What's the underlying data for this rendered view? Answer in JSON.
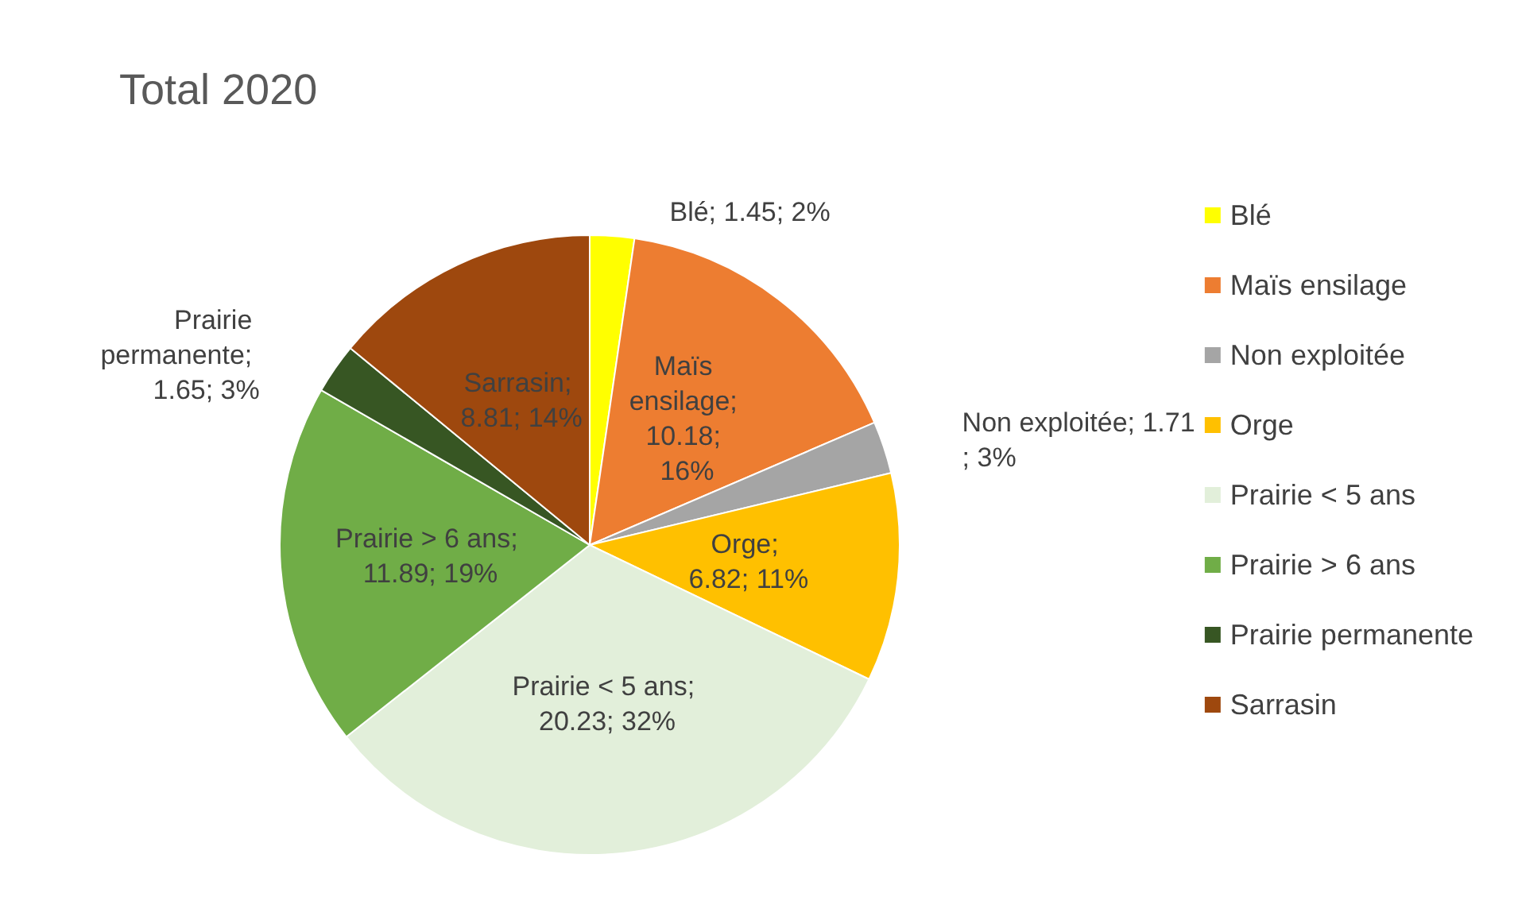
{
  "chart_data": {
    "type": "pie",
    "title": "Total 2020",
    "categories": [
      "Blé",
      "Maïs ensilage",
      "Non exploitée",
      "Orge",
      "Prairie < 5 ans",
      "Prairie > 6 ans",
      "Prairie permanente",
      "Sarrasin"
    ],
    "values": [
      1.45,
      10.18,
      1.71,
      6.82,
      20.23,
      11.89,
      1.65,
      8.81
    ],
    "value_labels": [
      "Blé; 1.45; 2%",
      "Maïs ensilage; 10.18; 16%",
      "Non exploitée; 1.71; 3%",
      "Orge; 6.82; 11%",
      "Prairie < 5 ans; 20.23; 32%",
      "Prairie > 6 ans; 11.89; 19%",
      "Prairie permanente; 1.65; 3%",
      "Sarrasin; 8.81; 14%"
    ],
    "colors": [
      "#ffff00",
      "#ed7d31",
      "#a5a5a5",
      "#ffc000",
      "#e2efda",
      "#70ad47",
      "#375623",
      "#9e480e"
    ],
    "legend": "right"
  }
}
